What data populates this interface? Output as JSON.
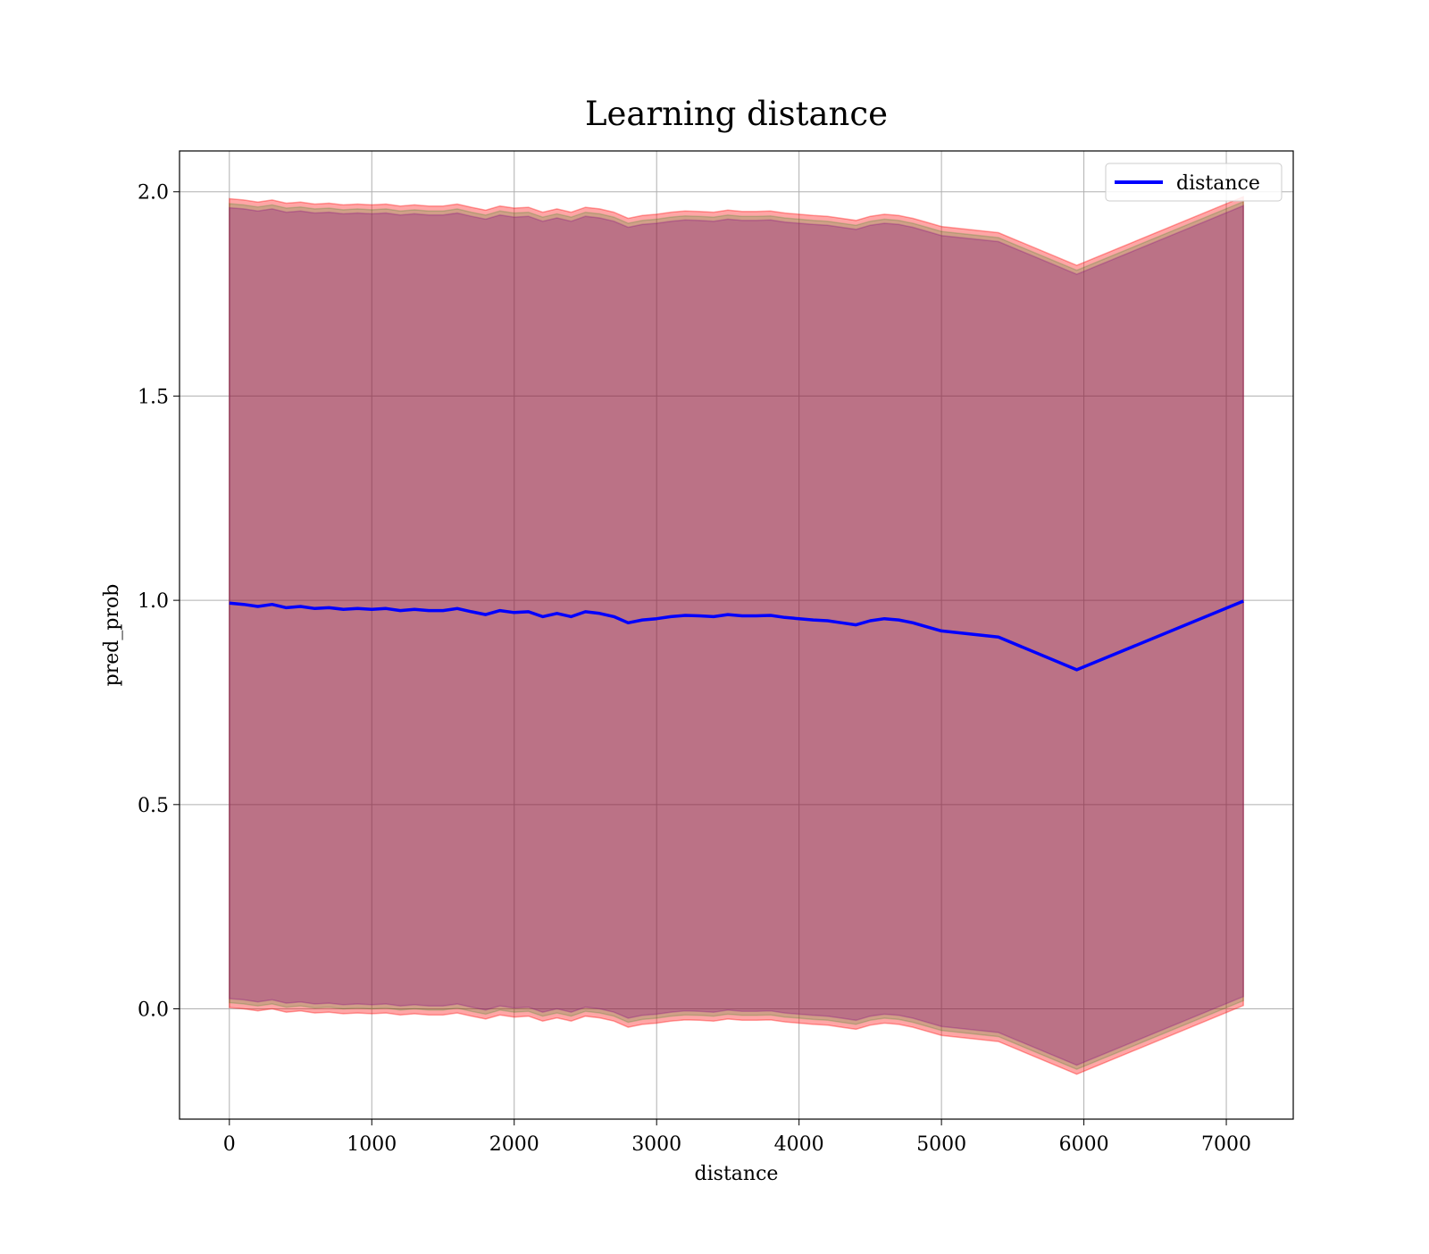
{
  "chart_data": {
    "type": "line",
    "title": "Learning distance",
    "xlabel": "distance",
    "ylabel": "pred_prob",
    "xlim": [
      -350,
      7470
    ],
    "ylim": [
      -0.27,
      2.1
    ],
    "xticks": [
      0,
      1000,
      2000,
      3000,
      4000,
      5000,
      6000,
      7000
    ],
    "xtick_labels": [
      "0",
      "1000",
      "2000",
      "3000",
      "4000",
      "5000",
      "6000",
      "7000"
    ],
    "yticks": [
      0.0,
      0.5,
      1.0,
      1.5,
      2.0
    ],
    "ytick_labels": [
      "0.0",
      "0.5",
      "1.0",
      "1.5",
      "2.0"
    ],
    "grid": true,
    "legend_position": "top-right",
    "series": [
      {
        "name": "distance",
        "color": "#0000ff",
        "x": [
          0,
          100,
          200,
          300,
          400,
          500,
          600,
          700,
          800,
          900,
          1000,
          1100,
          1200,
          1300,
          1400,
          1500,
          1600,
          1700,
          1800,
          1900,
          2000,
          2100,
          2200,
          2300,
          2400,
          2500,
          2600,
          2700,
          2800,
          2900,
          3000,
          3100,
          3200,
          3300,
          3400,
          3500,
          3600,
          3700,
          3800,
          3900,
          4000,
          4100,
          4200,
          4300,
          4400,
          4500,
          4600,
          4700,
          4800,
          4900,
          5000,
          5400,
          5950,
          7120
        ],
        "y": [
          0.993,
          0.99,
          0.985,
          0.99,
          0.982,
          0.985,
          0.98,
          0.982,
          0.978,
          0.98,
          0.978,
          0.98,
          0.975,
          0.978,
          0.975,
          0.975,
          0.98,
          0.972,
          0.965,
          0.975,
          0.97,
          0.972,
          0.96,
          0.968,
          0.96,
          0.972,
          0.968,
          0.96,
          0.945,
          0.952,
          0.955,
          0.96,
          0.963,
          0.962,
          0.96,
          0.965,
          0.962,
          0.962,
          0.963,
          0.958,
          0.955,
          0.952,
          0.95,
          0.945,
          0.94,
          0.95,
          0.955,
          0.952,
          0.945,
          0.935,
          0.925,
          0.91,
          0.83,
          0.998
        ]
      }
    ],
    "bands": [
      {
        "color": "#ff0000",
        "opacity": 0.35,
        "y_offset": 0.0
      },
      {
        "color": "#008000",
        "opacity": 0.18,
        "y_offset": 0.012
      },
      {
        "color": "#800080",
        "opacity": 0.28,
        "y_offset": 0.022
      }
    ],
    "band_halfwidth": 0.98
  }
}
